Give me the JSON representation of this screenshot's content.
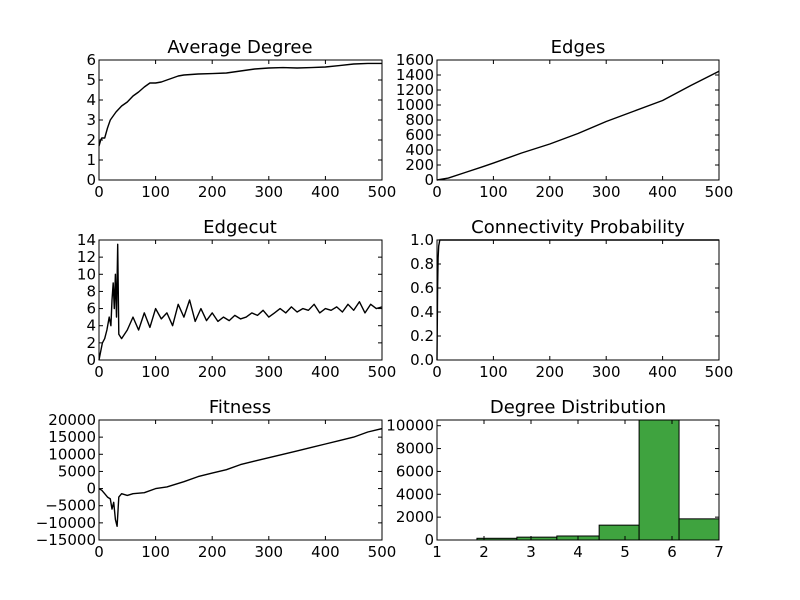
{
  "chart_data": [
    {
      "id": "avgdeg",
      "type": "line",
      "title": "Average Degree",
      "xlim": [
        0,
        500
      ],
      "ylim": [
        0,
        6
      ],
      "xticks": [
        0,
        100,
        200,
        300,
        400,
        500
      ],
      "yticks": [
        0,
        1,
        2,
        3,
        4,
        5,
        6
      ],
      "series": [
        {
          "x": [
            0,
            3,
            5,
            10,
            15,
            20,
            30,
            40,
            50,
            60,
            70,
            80,
            90,
            100,
            110,
            120,
            130,
            140,
            150,
            175,
            200,
            225,
            250,
            275,
            300,
            325,
            350,
            375,
            400,
            425,
            450,
            475,
            500
          ],
          "y": [
            1.7,
            2.0,
            2.1,
            2.1,
            2.6,
            3.0,
            3.4,
            3.7,
            3.9,
            4.2,
            4.4,
            4.65,
            4.85,
            4.85,
            4.9,
            5.0,
            5.1,
            5.2,
            5.25,
            5.3,
            5.32,
            5.35,
            5.45,
            5.55,
            5.6,
            5.62,
            5.6,
            5.62,
            5.65,
            5.72,
            5.8,
            5.83,
            5.83
          ]
        }
      ]
    },
    {
      "id": "edges",
      "type": "line",
      "title": "Edges",
      "xlim": [
        0,
        500
      ],
      "ylim": [
        0,
        1600
      ],
      "xticks": [
        0,
        100,
        200,
        300,
        400,
        500
      ],
      "yticks": [
        0,
        200,
        400,
        600,
        800,
        1000,
        1200,
        1400,
        1600
      ],
      "series": [
        {
          "x": [
            0,
            20,
            50,
            80,
            100,
            150,
            200,
            250,
            300,
            350,
            400,
            450,
            500
          ],
          "y": [
            0,
            25,
            100,
            175,
            225,
            360,
            480,
            620,
            780,
            920,
            1060,
            1260,
            1450
          ]
        }
      ]
    },
    {
      "id": "edgecut",
      "type": "line",
      "title": "Edgecut",
      "xlim": [
        0,
        500
      ],
      "ylim": [
        0,
        14
      ],
      "xticks": [
        0,
        100,
        200,
        300,
        400,
        500
      ],
      "yticks": [
        0,
        2,
        4,
        6,
        8,
        10,
        12,
        14
      ],
      "series": [
        {
          "x": [
            0,
            3,
            6,
            10,
            14,
            18,
            21,
            23,
            25,
            27,
            29,
            31,
            33,
            35,
            40,
            50,
            60,
            70,
            80,
            90,
            100,
            110,
            120,
            130,
            140,
            150,
            160,
            170,
            180,
            190,
            200,
            210,
            220,
            230,
            240,
            250,
            260,
            270,
            280,
            290,
            300,
            310,
            320,
            330,
            340,
            350,
            360,
            370,
            380,
            390,
            400,
            410,
            420,
            430,
            440,
            450,
            460,
            470,
            480,
            490,
            500
          ],
          "y": [
            0,
            1.0,
            2.0,
            2.5,
            3.5,
            5.0,
            4.0,
            7.0,
            9.0,
            6.0,
            10.0,
            5.0,
            13.5,
            3.0,
            2.5,
            3.5,
            5.0,
            3.5,
            5.5,
            3.8,
            6.0,
            4.8,
            5.5,
            4.0,
            6.5,
            5.0,
            7.0,
            4.5,
            6.0,
            4.6,
            5.5,
            4.5,
            5.0,
            4.6,
            5.2,
            4.8,
            5.0,
            5.5,
            5.2,
            5.8,
            5.0,
            5.5,
            6.0,
            5.5,
            6.2,
            5.6,
            6.0,
            5.8,
            6.5,
            5.5,
            6.0,
            5.8,
            6.2,
            5.6,
            6.5,
            5.8,
            6.8,
            5.5,
            6.5,
            6.0,
            6.2
          ]
        }
      ]
    },
    {
      "id": "conn",
      "type": "line",
      "title": "Connectivity Probability",
      "xlim": [
        0,
        500
      ],
      "ylim": [
        0,
        1.0
      ],
      "xticks": [
        0,
        100,
        200,
        300,
        400,
        500
      ],
      "yticks": [
        0.0,
        0.2,
        0.4,
        0.6,
        0.8,
        1.0
      ],
      "ytick_labels": [
        "0.0",
        "0.2",
        "0.4",
        "0.6",
        "0.8",
        "1.0"
      ],
      "series": [
        {
          "x": [
            0,
            1,
            2,
            3,
            5,
            500
          ],
          "y": [
            0.0,
            0.6,
            0.85,
            0.95,
            1.0,
            1.0
          ]
        }
      ]
    },
    {
      "id": "fitness",
      "type": "line",
      "title": "Fitness",
      "xlim": [
        0,
        500
      ],
      "ylim": [
        -15000,
        20000
      ],
      "xticks": [
        0,
        100,
        200,
        300,
        400,
        500
      ],
      "yticks": [
        -15000,
        -10000,
        -5000,
        0,
        5000,
        10000,
        15000,
        20000
      ],
      "ytick_labels": [
        "−15000",
        "−10000",
        "−5000",
        "0",
        "5000",
        "10000",
        "15000",
        "20000"
      ],
      "series": [
        {
          "x": [
            0,
            5,
            10,
            15,
            20,
            23,
            26,
            29,
            32,
            35,
            40,
            50,
            60,
            80,
            100,
            120,
            150,
            175,
            200,
            225,
            250,
            275,
            300,
            325,
            350,
            375,
            400,
            425,
            450,
            475,
            500
          ],
          "y": [
            0,
            -500,
            -1500,
            -2500,
            -3000,
            -6000,
            -4000,
            -9000,
            -11000,
            -2500,
            -1500,
            -2000,
            -1500,
            -1200,
            0,
            500,
            2000,
            3500,
            4500,
            5500,
            7000,
            8000,
            9000,
            10000,
            11000,
            12000,
            13000,
            14000,
            15000,
            16500,
            17500
          ]
        }
      ]
    },
    {
      "id": "degdist",
      "type": "bar",
      "title": "Degree Distribution",
      "xlim": [
        1,
        7
      ],
      "ylim": [
        0,
        10500
      ],
      "xticks": [
        1,
        2,
        3,
        4,
        5,
        6,
        7
      ],
      "yticks": [
        0,
        2000,
        4000,
        6000,
        8000,
        10000
      ],
      "bins": [
        {
          "x0": 1.0,
          "x1": 1.85,
          "value": 0
        },
        {
          "x0": 1.85,
          "x1": 2.7,
          "value": 150
        },
        {
          "x0": 2.7,
          "x1": 3.55,
          "value": 250
        },
        {
          "x0": 3.55,
          "x1": 4.45,
          "value": 350
        },
        {
          "x0": 4.45,
          "x1": 5.3,
          "value": 1300
        },
        {
          "x0": 5.3,
          "x1": 6.15,
          "value": 10600
        },
        {
          "x0": 6.15,
          "x1": 7.0,
          "value": 1850
        }
      ],
      "bar_color": "#3fa33f"
    }
  ]
}
